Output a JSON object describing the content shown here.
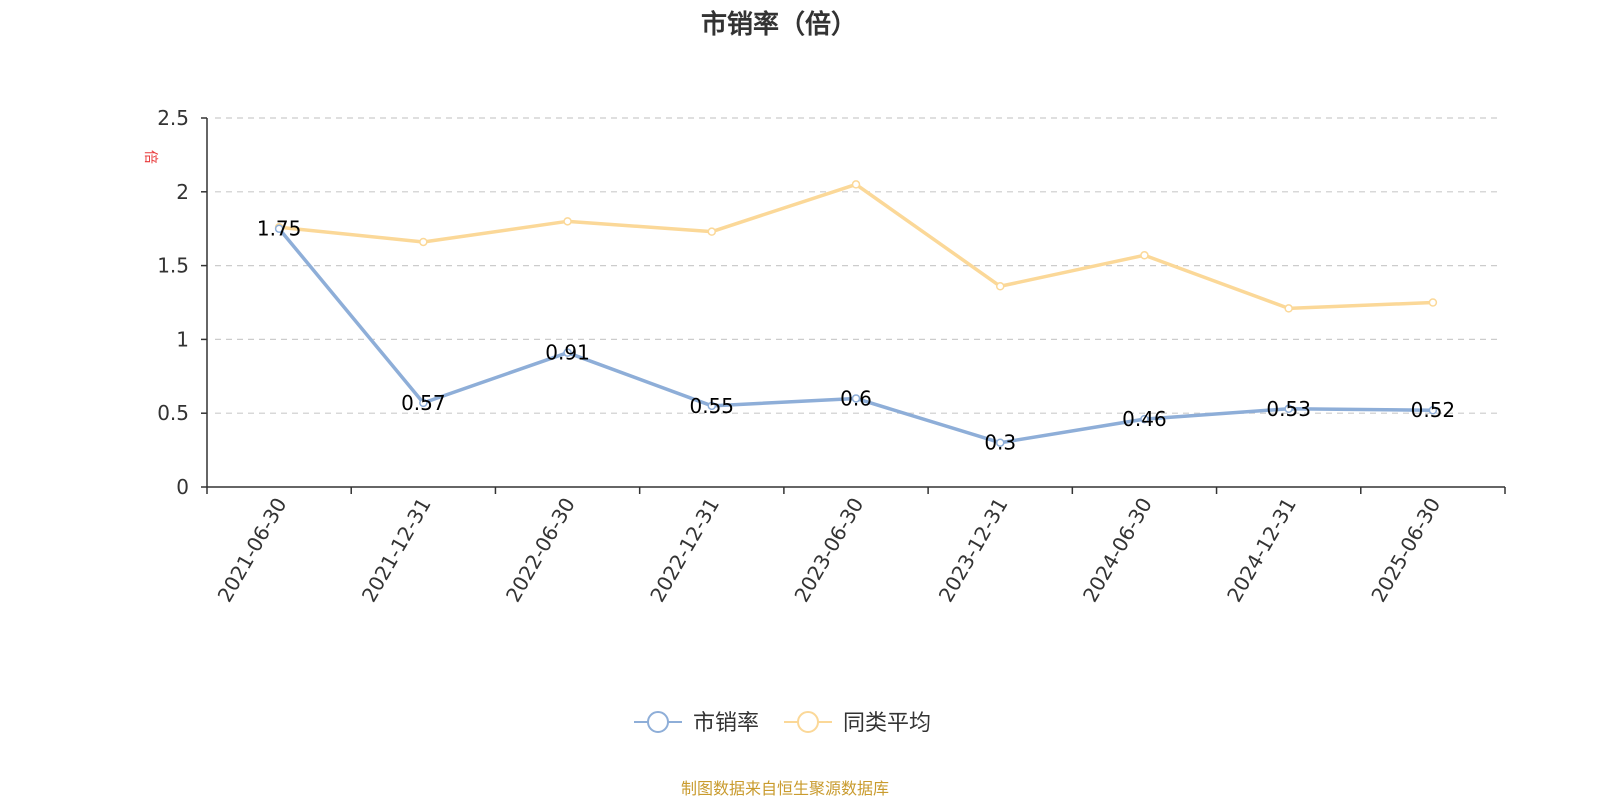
{
  "colors": {
    "series_1": "#8eaed8",
    "series_2": "#fbd898",
    "y_unit": "#e8393a",
    "source": "#c99b2e",
    "axis": "#333333",
    "grid": "#cccccc"
  },
  "footer": {
    "source": "制图数据来自恒生聚源数据库"
  },
  "chart_data": {
    "type": "line",
    "title": "市销率（倍）",
    "ylabel": "倍",
    "xlabel": "",
    "ylim": [
      0,
      2.5
    ],
    "yticks": [
      0,
      0.5,
      1,
      1.5,
      2,
      2.5
    ],
    "ytick_labels": [
      "0",
      "0.5",
      "1",
      "1.5",
      "2",
      "2.5"
    ],
    "grid": true,
    "legend_position": "bottom-center",
    "categories": [
      "2021-06-30",
      "2021-12-31",
      "2022-06-30",
      "2022-12-31",
      "2023-06-30",
      "2023-12-31",
      "2024-06-30",
      "2024-12-31",
      "2025-06-30"
    ],
    "series": [
      {
        "name": "市销率",
        "values": [
          1.75,
          0.57,
          0.91,
          0.55,
          0.6,
          0.3,
          0.46,
          0.53,
          0.52
        ],
        "labels": [
          "1.75",
          "0.57",
          "0.91",
          "0.55",
          "0.6",
          "0.3",
          "0.46",
          "0.53",
          "0.52"
        ],
        "show_labels": true
      },
      {
        "name": "同类平均",
        "values": [
          1.76,
          1.66,
          1.8,
          1.73,
          2.05,
          1.36,
          1.57,
          1.21,
          1.25
        ],
        "show_labels": false
      }
    ]
  }
}
